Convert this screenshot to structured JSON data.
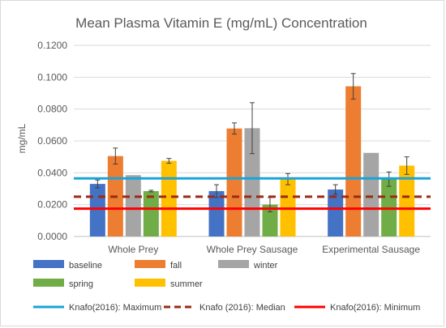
{
  "chart_data": {
    "type": "bar",
    "title": "Mean Plasma Vitamin E (mg/mL) Concentration",
    "xlabel": "",
    "ylabel": "mg/mL",
    "ylim": [
      0,
      0.12
    ],
    "yticks": [
      "0.0000",
      "0.0200",
      "0.0400",
      "0.0600",
      "0.0800",
      "0.1000",
      "0.1200"
    ],
    "grid": true,
    "legend_position": "bottom",
    "categories": [
      "Whole Prey",
      "Whole Prey Sausage",
      "Experimental Sausage"
    ],
    "series": [
      {
        "name": "baseline",
        "color": "#4472c4",
        "values": [
          0.033,
          0.0285,
          0.0295
        ],
        "errors": [
          0.0025,
          0.004,
          0.003
        ]
      },
      {
        "name": "fall",
        "color": "#ed7d31",
        "values": [
          0.0505,
          0.0678,
          0.0943
        ],
        "errors": [
          0.005,
          0.0035,
          0.008
        ]
      },
      {
        "name": "winter",
        "color": "#a5a5a5",
        "values": [
          0.0385,
          0.068,
          0.0525
        ],
        "errors": [
          0.0,
          0.016,
          0.0
        ]
      },
      {
        "name": "spring",
        "color": "#70ad47",
        "values": [
          0.0285,
          0.02,
          0.036
        ],
        "errors": [
          0.0005,
          0.0045,
          0.0045
        ]
      },
      {
        "name": "summer",
        "color": "#ffc000",
        "values": [
          0.0475,
          0.036,
          0.0445
        ],
        "errors": [
          0.0015,
          0.0035,
          0.0055
        ]
      }
    ],
    "reference_lines": [
      {
        "name": "Knafo(2016): Maximum",
        "value": 0.0365,
        "color": "#1aa3d9",
        "style": "solid"
      },
      {
        "name": "Knafo (2016): Median",
        "value": 0.025,
        "color": "#9e2a14",
        "style": "dashed"
      },
      {
        "name": "Knafo(2016): Minimum",
        "value": 0.0175,
        "color": "#ff0000",
        "style": "solid"
      }
    ]
  }
}
